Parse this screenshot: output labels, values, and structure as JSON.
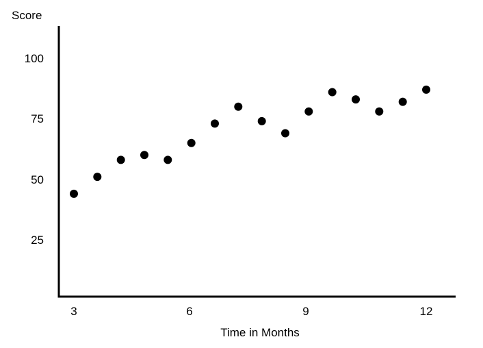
{
  "chart_data": {
    "type": "scatter",
    "title": "",
    "xlabel": "Time in Months",
    "ylabel": "Score",
    "x_ticks": [
      "3",
      "6",
      "9",
      "12"
    ],
    "y_ticks": [
      "25",
      "50",
      "75",
      "100"
    ],
    "xlim": [
      3,
      12
    ],
    "ylim": [
      0,
      112
    ],
    "grid": false,
    "point_color": "#000000",
    "points": [
      {
        "x": 3.0,
        "y": 44
      },
      {
        "x": 3.6,
        "y": 51
      },
      {
        "x": 4.2,
        "y": 58
      },
      {
        "x": 4.8,
        "y": 60
      },
      {
        "x": 5.4,
        "y": 58
      },
      {
        "x": 6.0,
        "y": 65
      },
      {
        "x": 6.6,
        "y": 73
      },
      {
        "x": 7.2,
        "y": 80
      },
      {
        "x": 7.8,
        "y": 74
      },
      {
        "x": 8.4,
        "y": 69
      },
      {
        "x": 9.0,
        "y": 78
      },
      {
        "x": 9.6,
        "y": 86
      },
      {
        "x": 10.2,
        "y": 83
      },
      {
        "x": 10.8,
        "y": 78
      },
      {
        "x": 11.4,
        "y": 82
      },
      {
        "x": 12.0,
        "y": 87
      }
    ]
  }
}
